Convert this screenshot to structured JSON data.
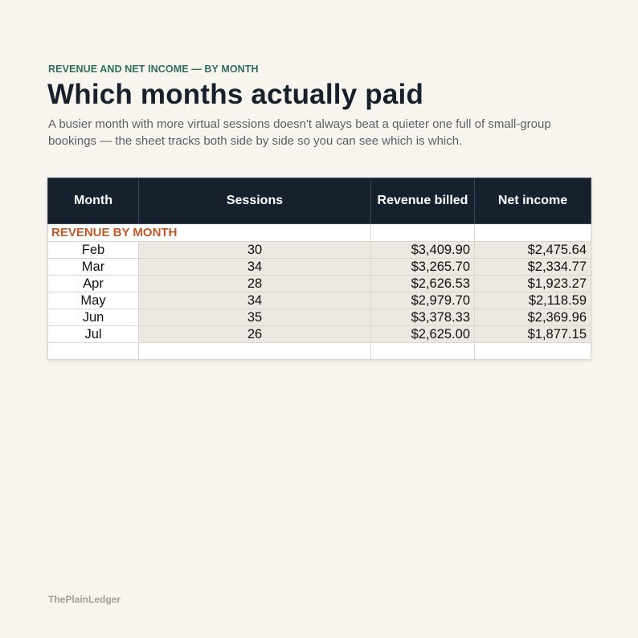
{
  "eyebrow": "REVENUE AND NET INCOME — BY MONTH",
  "title": "Which months actually paid",
  "subtitle": "A busier month with more virtual sessions doesn't always beat a quieter one full of small-group bookings — the sheet tracks both side by side so you can see which is which.",
  "sheet": {
    "title": "REVENUE BY MONTH",
    "headers": [
      "Month",
      "Sessions",
      "Revenue billed",
      "Net income"
    ],
    "rows": [
      {
        "month": "Feb",
        "sessions": "30",
        "revenue": "$3,409.90",
        "net": "$2,475.64"
      },
      {
        "month": "Mar",
        "sessions": "34",
        "revenue": "$3,265.70",
        "net": "$2,334.77"
      },
      {
        "month": "Apr",
        "sessions": "28",
        "revenue": "$2,626.53",
        "net": "$1,923.27"
      },
      {
        "month": "May",
        "sessions": "34",
        "revenue": "$2,979.70",
        "net": "$2,118.59"
      },
      {
        "month": "Jun",
        "sessions": "35",
        "revenue": "$3,378.33",
        "net": "$2,369.96"
      },
      {
        "month": "Jul",
        "sessions": "26",
        "revenue": "$2,625.00",
        "net": "$1,877.15"
      }
    ]
  },
  "footer": "ThePlainLedger",
  "colors": {
    "background": "#f8f5ef",
    "accent_green": "#2f6e5f",
    "accent_orange": "#c0592a",
    "header_dark": "#17212e",
    "cell_shade": "#ece8e2"
  }
}
